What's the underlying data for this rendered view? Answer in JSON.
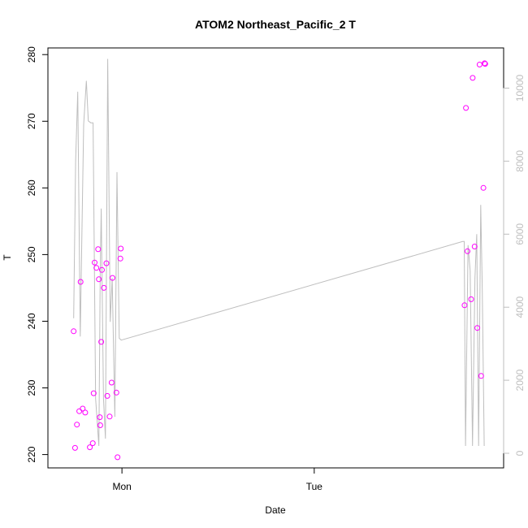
{
  "chart_data": {
    "type": "scatter",
    "title": "ATOM2 Northeast_Pacific_2 T",
    "xlabel": "Date",
    "ylabel": "T",
    "xlim": [
      -0.385,
      1.985
    ],
    "ylim": [
      218,
      281
    ],
    "y_ticks": [
      220,
      230,
      240,
      250,
      260,
      270,
      280
    ],
    "x_ticks": [
      {
        "value": 0,
        "label": "Mon"
      },
      {
        "value": 1,
        "label": "Tue"
      }
    ],
    "y2_lim": [
      -400,
      11100
    ],
    "y2_ticks": [
      0,
      2000,
      4000,
      6000,
      8000,
      10000
    ],
    "point_color": "#ff00ff",
    "line_color": "#bebebe",
    "grid": false,
    "series": [
      {
        "values": [
          {
            "x": -0.251,
            "y": 238.5
          },
          {
            "x": -0.244,
            "y": 221.0
          },
          {
            "x": -0.234,
            "y": 224.5
          },
          {
            "x": -0.222,
            "y": 226.5
          },
          {
            "x": -0.215,
            "y": 245.9
          },
          {
            "x": -0.204,
            "y": 226.9
          },
          {
            "x": -0.191,
            "y": 226.3
          },
          {
            "x": -0.167,
            "y": 221.1
          },
          {
            "x": -0.152,
            "y": 221.7
          },
          {
            "x": -0.147,
            "y": 229.2
          },
          {
            "x": -0.142,
            "y": 248.8
          },
          {
            "x": -0.133,
            "y": 248.0
          },
          {
            "x": -0.124,
            "y": 250.8
          },
          {
            "x": -0.12,
            "y": 246.3
          },
          {
            "x": -0.115,
            "y": 225.6
          },
          {
            "x": -0.113,
            "y": 224.4
          },
          {
            "x": -0.108,
            "y": 236.9
          },
          {
            "x": -0.104,
            "y": 247.7
          },
          {
            "x": -0.094,
            "y": 245.0
          },
          {
            "x": -0.081,
            "y": 248.7
          },
          {
            "x": -0.076,
            "y": 228.8
          },
          {
            "x": -0.064,
            "y": 225.7
          },
          {
            "x": -0.054,
            "y": 230.8
          },
          {
            "x": -0.049,
            "y": 246.5
          },
          {
            "x": -0.029,
            "y": 229.3
          },
          {
            "x": -0.023,
            "y": 219.6
          },
          {
            "x": -0.008,
            "y": 249.4
          },
          {
            "x": -0.006,
            "y": 250.9
          },
          {
            "x": 1.782,
            "y": 242.4
          },
          {
            "x": 1.789,
            "y": 272.0
          },
          {
            "x": 1.797,
            "y": 250.5
          },
          {
            "x": 1.816,
            "y": 243.3
          },
          {
            "x": 1.824,
            "y": 276.5
          },
          {
            "x": 1.834,
            "y": 251.2
          },
          {
            "x": 1.848,
            "y": 239.0
          },
          {
            "x": 1.86,
            "y": 278.5
          },
          {
            "x": 1.868,
            "y": 231.8
          },
          {
            "x": 1.88,
            "y": 260.0
          },
          {
            "x": 1.886,
            "y": 278.7
          },
          {
            "x": 1.889,
            "y": 278.6
          }
        ]
      },
      {
        "axis": "right",
        "values": [
          {
            "x": -0.251,
            "y": 3700
          },
          {
            "x": -0.241,
            "y": 8000
          },
          {
            "x": -0.23,
            "y": 9900
          },
          {
            "x": -0.217,
            "y": 3200
          },
          {
            "x": -0.199,
            "y": 9000
          },
          {
            "x": -0.185,
            "y": 10200
          },
          {
            "x": -0.175,
            "y": 9100
          },
          {
            "x": -0.162,
            "y": 9050
          },
          {
            "x": -0.15,
            "y": 9050
          },
          {
            "x": -0.137,
            "y": 1500
          },
          {
            "x": -0.12,
            "y": 200
          },
          {
            "x": -0.113,
            "y": 5000
          },
          {
            "x": -0.108,
            "y": 6700
          },
          {
            "x": -0.096,
            "y": 1500
          },
          {
            "x": -0.086,
            "y": 400
          },
          {
            "x": -0.074,
            "y": 10800
          },
          {
            "x": -0.061,
            "y": 3600
          },
          {
            "x": -0.051,
            "y": 4800
          },
          {
            "x": -0.037,
            "y": 1000
          },
          {
            "x": -0.026,
            "y": 7700
          },
          {
            "x": -0.014,
            "y": 3150
          },
          {
            "x": -0.004,
            "y": 3100
          },
          {
            "x": 1.772,
            "y": 5800
          },
          {
            "x": 1.78,
            "y": 5800
          },
          {
            "x": 1.787,
            "y": 200
          },
          {
            "x": 1.8,
            "y": 5700
          },
          {
            "x": 1.811,
            "y": 5000
          },
          {
            "x": 1.823,
            "y": 200
          },
          {
            "x": 1.836,
            "y": 4800
          },
          {
            "x": 1.845,
            "y": 6000
          },
          {
            "x": 1.855,
            "y": 200
          },
          {
            "x": 1.866,
            "y": 6800
          },
          {
            "x": 1.874,
            "y": 4500
          },
          {
            "x": 1.884,
            "y": 200
          }
        ]
      }
    ]
  }
}
